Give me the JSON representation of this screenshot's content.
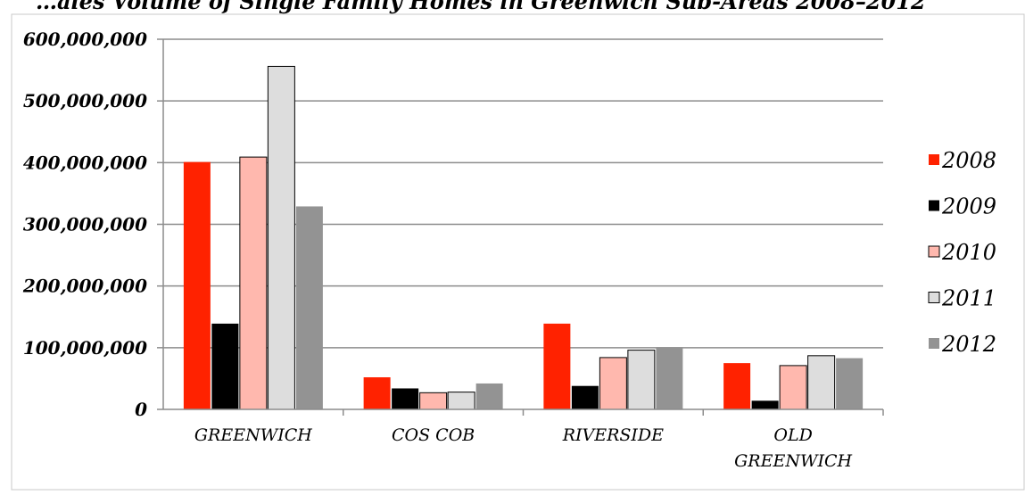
{
  "chart_data": {
    "type": "bar",
    "title": "…ales Volume of Single Family Homes in Greenwich Sub-Areas 2008–2012",
    "categories": [
      [
        "GREENWICH"
      ],
      [
        "COS COB"
      ],
      [
        "RIVERSIDE"
      ],
      [
        "OLD",
        "GREENWICH"
      ]
    ],
    "series": [
      {
        "name": "2008",
        "color": "#FF2200",
        "values": [
          401000000,
          52000000,
          139000000,
          75000000
        ]
      },
      {
        "name": "2009",
        "color": "#000000",
        "values": [
          139000000,
          34000000,
          38000000,
          14000000
        ]
      },
      {
        "name": "2010",
        "color": "#FFB8AE",
        "values": [
          409000000,
          27000000,
          84000000,
          71000000
        ]
      },
      {
        "name": "2011",
        "color": "#DDDDDD",
        "values": [
          556000000,
          28000000,
          96000000,
          87000000
        ]
      },
      {
        "name": "2012",
        "color": "#939393",
        "values": [
          329000000,
          42000000,
          101000000,
          83000000
        ]
      }
    ],
    "y_ticks": [
      "0",
      "100,000,000",
      "200,000,000",
      "300,000,000",
      "400,000,000",
      "500,000,000",
      "600,000,000"
    ],
    "ylim": [
      0,
      600000000
    ],
    "xlabel": "",
    "ylabel": "",
    "grid": true,
    "legend_position": "right"
  }
}
